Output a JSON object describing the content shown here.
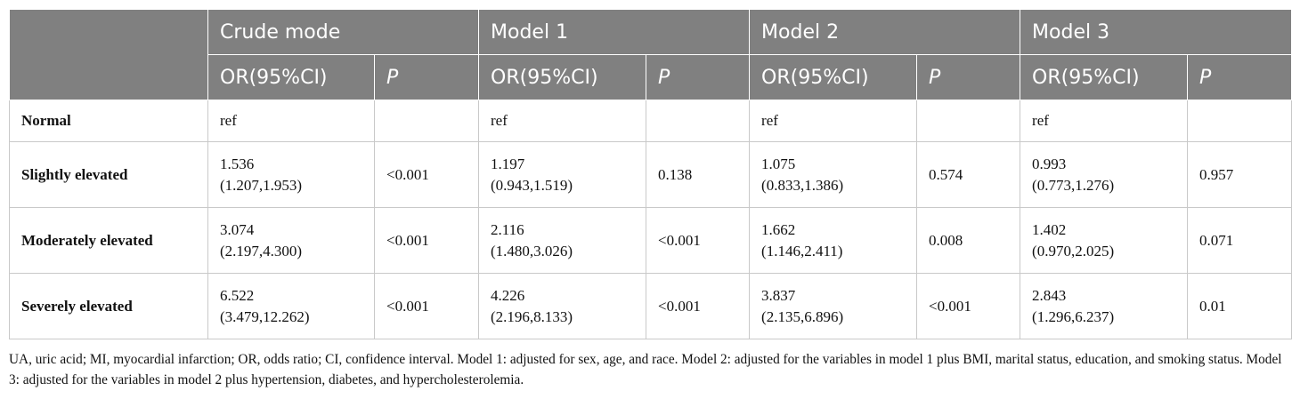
{
  "table": {
    "groups": [
      "Crude mode",
      "Model 1",
      "Model 2",
      "Model 3"
    ],
    "subheaders": [
      "OR(95%CI)",
      "P"
    ],
    "rows": [
      {
        "label": "Normal",
        "cells": [
          [
            "ref"
          ],
          [],
          [
            "ref"
          ],
          [],
          [
            "ref"
          ],
          [],
          [
            "ref"
          ],
          []
        ]
      },
      {
        "label": "Slightly elevated",
        "cells": [
          [
            "1.536",
            "(1.207,1.953)"
          ],
          [
            "<0.001"
          ],
          [
            "1.197",
            "(0.943,1.519)"
          ],
          [
            "0.138"
          ],
          [
            "1.075",
            "(0.833,1.386)"
          ],
          [
            "0.574"
          ],
          [
            "0.993",
            "(0.773,1.276)"
          ],
          [
            "0.957"
          ]
        ]
      },
      {
        "label": "Moderately elevated",
        "cells": [
          [
            "3.074",
            "(2.197,4.300)"
          ],
          [
            "<0.001"
          ],
          [
            "2.116",
            "(1.480,3.026)"
          ],
          [
            "<0.001"
          ],
          [
            "1.662",
            "(1.146,2.411)"
          ],
          [
            "0.008"
          ],
          [
            "1.402",
            "(0.970,2.025)"
          ],
          [
            "0.071"
          ]
        ]
      },
      {
        "label": "Severely elevated",
        "cells": [
          [
            "6.522",
            "(3.479,12.262)"
          ],
          [
            "<0.001"
          ],
          [
            "4.226",
            "(2.196,8.133)"
          ],
          [
            "<0.001"
          ],
          [
            "3.837",
            "(2.135,6.896)"
          ],
          [
            "<0.001"
          ],
          [
            "2.843",
            "(1.296,6.237)"
          ],
          [
            "0.01"
          ]
        ]
      }
    ]
  },
  "footnote": "UA, uric acid; MI, myocardial infarction; OR, odds ratio; CI, confidence interval. Model 1: adjusted for sex, age, and race. Model 2: adjusted for the variables in model 1 plus BMI, marital status, education, and smoking status. Model 3: adjusted for the variables in model 2 plus hypertension, diabetes, and hypercholesterolemia."
}
